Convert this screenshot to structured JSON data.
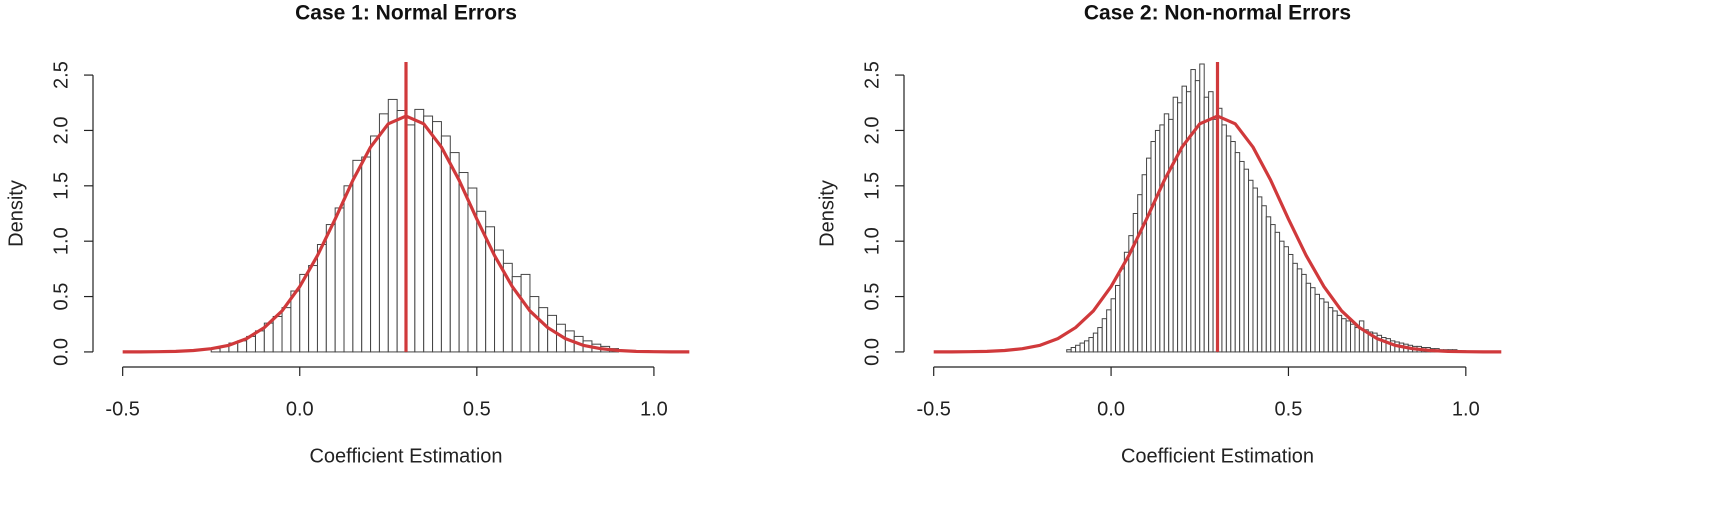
{
  "chart_data": [
    {
      "type": "histogram",
      "title": "Case 1: Normal Errors",
      "xlabel": "Coefficient Estimation",
      "ylabel": "Density",
      "bins": [
        -0.25,
        -0.225,
        -0.2,
        -0.175,
        -0.15,
        -0.125,
        -0.1,
        -0.075,
        -0.05,
        -0.025,
        0,
        0.025,
        0.05,
        0.075,
        0.1,
        0.125,
        0.15,
        0.175,
        0.2,
        0.225,
        0.25,
        0.275,
        0.3,
        0.325,
        0.35,
        0.375,
        0.4,
        0.425,
        0.45,
        0.475,
        0.5,
        0.525,
        0.55,
        0.575,
        0.6,
        0.625,
        0.65,
        0.675,
        0.7,
        0.725,
        0.75,
        0.775,
        0.8,
        0.825,
        0.85,
        0.875,
        0.9
      ],
      "values": [
        0.03,
        0.05,
        0.08,
        0.1,
        0.14,
        0.19,
        0.26,
        0.32,
        0.4,
        0.55,
        0.7,
        0.78,
        0.97,
        1.15,
        1.3,
        1.5,
        1.73,
        1.76,
        1.95,
        2.15,
        2.28,
        2.18,
        2.05,
        2.19,
        2.13,
        2.08,
        1.95,
        1.8,
        1.62,
        1.48,
        1.27,
        1.13,
        0.92,
        0.8,
        0.68,
        0.7,
        0.5,
        0.4,
        0.33,
        0.25,
        0.19,
        0.14,
        0.1,
        0.07,
        0.05,
        0.03
      ],
      "color": "#ffffff",
      "edgecolor": "#444444",
      "curve": {
        "color": "#d0393b",
        "x": [
          -0.5,
          -0.45,
          -0.4,
          -0.35,
          -0.3,
          -0.25,
          -0.2,
          -0.15,
          -0.1,
          -0.05,
          0,
          0.05,
          0.1,
          0.15,
          0.2,
          0.25,
          0.3,
          0.35,
          0.4,
          0.45,
          0.5,
          0.55,
          0.6,
          0.65,
          0.7,
          0.75,
          0.8,
          0.85,
          0.9,
          0.95,
          1.0,
          1.05,
          1.1
        ],
        "y": [
          0.0002,
          0.0007,
          0.002,
          0.005,
          0.013,
          0.029,
          0.06,
          0.12,
          0.22,
          0.37,
          0.59,
          0.87,
          1.2,
          1.55,
          1.85,
          2.06,
          2.13,
          2.06,
          1.85,
          1.55,
          1.2,
          0.87,
          0.59,
          0.37,
          0.22,
          0.12,
          0.06,
          0.029,
          0.013,
          0.005,
          0.002,
          0.0007,
          0.0002
        ]
      },
      "vline": 0.3,
      "xlim": [
        -0.564,
        1.164
      ],
      "ylim": [
        -0.1,
        2.6
      ],
      "xticks": [
        -0.5,
        {
          "value": 0,
          "label": "0.0"
        },
        0.5,
        {
          "value": 1,
          "label": "1.0"
        }
      ],
      "yticks": [
        {
          "value": 0,
          "label": "0.0"
        },
        0.5,
        {
          "value": 1,
          "label": "1.0"
        },
        1.5,
        {
          "value": 2,
          "label": "2.0"
        },
        2.5
      ]
    },
    {
      "type": "histogram",
      "title": "Case 2: Non-normal Errors",
      "xlabel": "Coefficient Estimation",
      "ylabel": "Density",
      "bins": [
        -0.125,
        -0.1125,
        -0.1,
        -0.0875,
        -0.075,
        -0.0625,
        -0.05,
        -0.0375,
        -0.025,
        -0.0125,
        0,
        0.0125,
        0.025,
        0.0375,
        0.05,
        0.0625,
        0.075,
        0.0875,
        0.1,
        0.1125,
        0.125,
        0.1375,
        0.15,
        0.1625,
        0.175,
        0.1875,
        0.2,
        0.2125,
        0.225,
        0.2375,
        0.25,
        0.2625,
        0.275,
        0.2875,
        0.3,
        0.3125,
        0.325,
        0.3375,
        0.35,
        0.3625,
        0.375,
        0.3875,
        0.4,
        0.4125,
        0.425,
        0.4375,
        0.45,
        0.4625,
        0.475,
        0.4875,
        0.5,
        0.5125,
        0.525,
        0.5375,
        0.55,
        0.5625,
        0.575,
        0.5875,
        0.6,
        0.6125,
        0.625,
        0.6375,
        0.65,
        0.6625,
        0.675,
        0.6875,
        0.7,
        0.7125,
        0.725,
        0.7375,
        0.75,
        0.7625,
        0.775,
        0.7875,
        0.8,
        0.8125,
        0.825,
        0.8375,
        0.85,
        0.8625,
        0.875,
        0.8875,
        0.9,
        0.9125,
        0.925,
        0.9375,
        0.95,
        0.9625,
        0.975,
        0.9875,
        1.0
      ],
      "values": [
        0.02,
        0.04,
        0.06,
        0.08,
        0.1,
        0.13,
        0.17,
        0.22,
        0.3,
        0.38,
        0.48,
        0.6,
        0.75,
        0.9,
        1.05,
        1.25,
        1.42,
        1.6,
        1.75,
        1.9,
        2.0,
        2.05,
        2.15,
        2.1,
        2.3,
        2.25,
        2.4,
        2.35,
        2.55,
        2.45,
        2.6,
        2.3,
        2.35,
        2.1,
        2.2,
        2.05,
        1.95,
        1.9,
        1.8,
        1.72,
        1.65,
        1.55,
        1.48,
        1.4,
        1.32,
        1.22,
        1.15,
        1.08,
        1.0,
        0.95,
        0.88,
        0.8,
        0.75,
        0.7,
        0.62,
        0.58,
        0.52,
        0.48,
        0.45,
        0.4,
        0.37,
        0.33,
        0.3,
        0.28,
        0.25,
        0.22,
        0.28,
        0.2,
        0.18,
        0.17,
        0.15,
        0.13,
        0.12,
        0.1,
        0.09,
        0.08,
        0.07,
        0.06,
        0.05,
        0.05,
        0.04,
        0.04,
        0.03,
        0.03,
        0.02,
        0.02,
        0.02,
        0.02,
        0.01,
        0.01
      ],
      "color": "#ffffff",
      "edgecolor": "#444444",
      "curve": {
        "color": "#d0393b",
        "x": [
          -0.5,
          -0.45,
          -0.4,
          -0.35,
          -0.3,
          -0.25,
          -0.2,
          -0.15,
          -0.1,
          -0.05,
          0,
          0.05,
          0.1,
          0.15,
          0.2,
          0.25,
          0.3,
          0.35,
          0.4,
          0.45,
          0.5,
          0.55,
          0.6,
          0.65,
          0.7,
          0.75,
          0.8,
          0.85,
          0.9,
          0.95,
          1.0,
          1.05,
          1.1
        ],
        "y": [
          0.0002,
          0.0007,
          0.002,
          0.005,
          0.013,
          0.029,
          0.06,
          0.12,
          0.22,
          0.37,
          0.59,
          0.87,
          1.2,
          1.55,
          1.85,
          2.06,
          2.13,
          2.06,
          1.85,
          1.55,
          1.2,
          0.87,
          0.59,
          0.37,
          0.22,
          0.12,
          0.06,
          0.029,
          0.013,
          0.005,
          0.002,
          0.0007,
          0.0002
        ]
      },
      "vline": 0.3,
      "xlim": [
        -0.564,
        1.164
      ],
      "ylim": [
        -0.1,
        2.6
      ],
      "xticks": [
        -0.5,
        {
          "value": 0,
          "label": "0.0"
        },
        0.5,
        {
          "value": 1,
          "label": "1.0"
        }
      ],
      "yticks": [
        {
          "value": 0,
          "label": "0.0"
        },
        0.5,
        {
          "value": 1,
          "label": "1.0"
        },
        1.5,
        {
          "value": 2,
          "label": "2.0"
        },
        2.5
      ]
    }
  ]
}
